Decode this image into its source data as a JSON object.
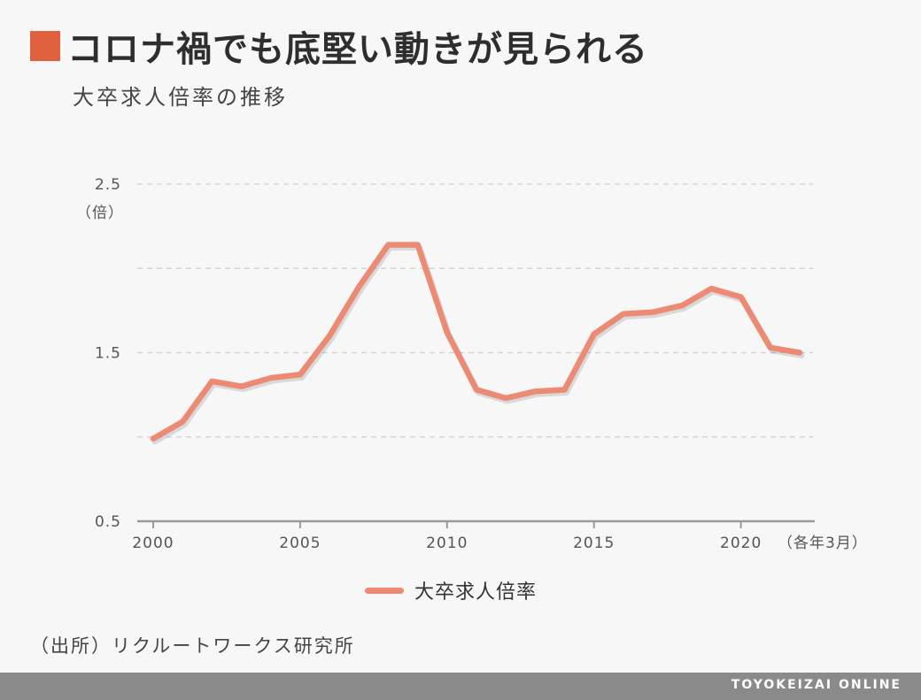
{
  "title": "コロナ禍でも底堅い動きが見られる",
  "subtitle": "大卒求人倍率の推移",
  "source": "（出所）リクルートワークス研究所",
  "brand": "TOYOKEIZAI ONLINE",
  "colors": {
    "accent": "#e0613e",
    "line": "#ec8a73",
    "footer": "#8a8a8a"
  },
  "chart_data": {
    "type": "line",
    "title": "コロナ禍でも底堅い動きが見られる",
    "subtitle": "大卒求人倍率の推移",
    "xlabel": "（各年3月）",
    "ylabel": "（倍）",
    "ylim": [
      0.5,
      2.5
    ],
    "xlim": [
      2000,
      2022
    ],
    "y_ticks": [
      0.5,
      1.5,
      2.5
    ],
    "y_tick_labels": [
      "0.5",
      "1.5",
      "2.5"
    ],
    "y_gridlines": [
      1.0,
      1.5,
      2.0,
      2.5
    ],
    "x_ticks": [
      2000,
      2005,
      2010,
      2015,
      2020
    ],
    "x_tick_labels": [
      "2000",
      "2005",
      "2010",
      "2015",
      "2020"
    ],
    "grid": true,
    "legend_position": "bottom",
    "series": [
      {
        "name": "大卒求人倍率",
        "color": "#ec8a73",
        "x": [
          2000,
          2001,
          2002,
          2003,
          2004,
          2005,
          2006,
          2007,
          2008,
          2009,
          2010,
          2011,
          2012,
          2013,
          2014,
          2015,
          2016,
          2017,
          2018,
          2019,
          2020,
          2021,
          2022
        ],
        "values": [
          0.99,
          1.09,
          1.33,
          1.3,
          1.35,
          1.37,
          1.6,
          1.89,
          2.14,
          2.14,
          1.62,
          1.28,
          1.23,
          1.27,
          1.28,
          1.61,
          1.73,
          1.74,
          1.78,
          1.88,
          1.83,
          1.53,
          1.5
        ]
      }
    ]
  }
}
